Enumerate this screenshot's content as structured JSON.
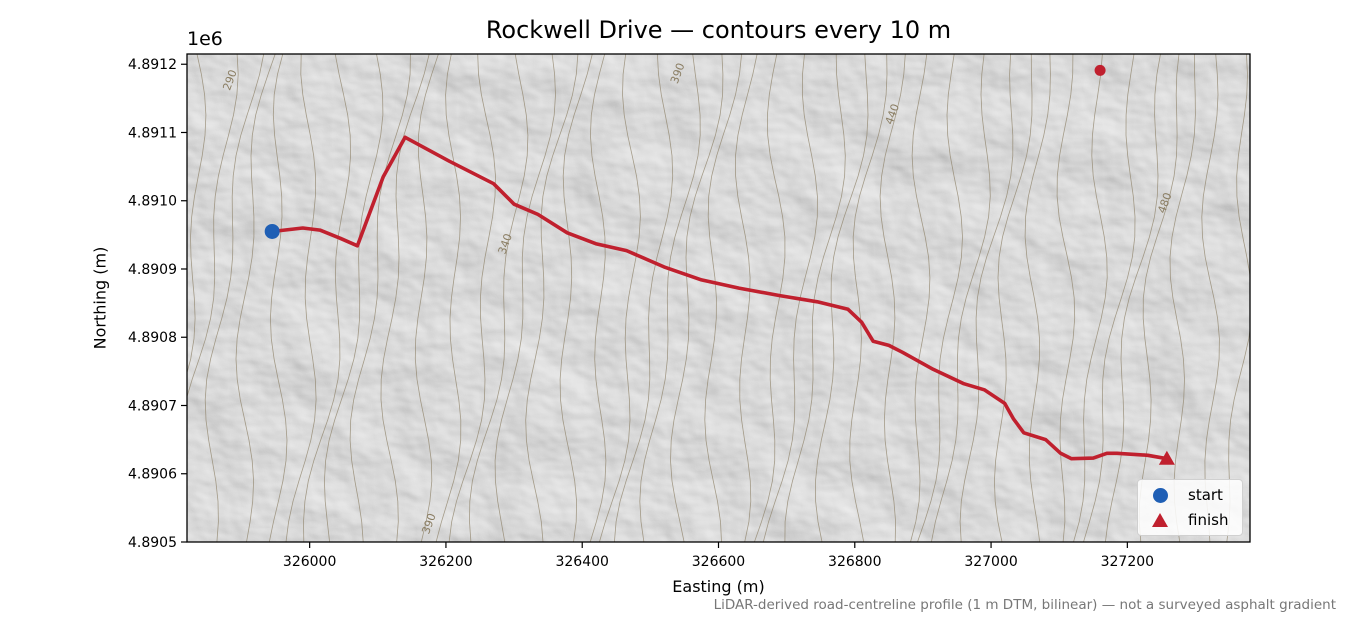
{
  "colors": {
    "route": "#c0202e",
    "start": "#1f5fb5",
    "finish": "#c0202e",
    "poi": "#c0202e",
    "contour": "#8a7d62",
    "hillshade": "#b9b9b9"
  },
  "chart_data": {
    "type": "line",
    "title": "Rockwell Drive — contours every 10 m",
    "xlabel": "Easting (m)",
    "ylabel": "Northing (m)",
    "y_offset_label": "1e6",
    "xlim": [
      325820,
      327380
    ],
    "ylim": [
      4890500,
      4891215
    ],
    "x_ticks": [
      326000,
      326200,
      326400,
      326600,
      326800,
      327000,
      327200
    ],
    "x_tick_labels": [
      "326000",
      "326200",
      "326400",
      "326600",
      "326800",
      "327000",
      "327200"
    ],
    "y_ticks": [
      4890500,
      4890600,
      4890700,
      4890800,
      4890900,
      4891000,
      4891100,
      4891200
    ],
    "y_tick_labels": [
      "4.8905",
      "4.8906",
      "4.8907",
      "4.8908",
      "4.8909",
      "4.8910",
      "4.8911",
      "4.8912"
    ],
    "series": [
      {
        "type": "route",
        "x": [
          325945,
          325990,
          326015,
          326045,
          326070,
          326108,
          326140,
          326205,
          326270,
          326300,
          326335,
          326378,
          326420,
          326465,
          326520,
          326575,
          326630,
          326690,
          326745,
          326790,
          326810,
          326827,
          326850,
          326870,
          326915,
          326960,
          326990,
          327020,
          327033,
          327048,
          327080,
          327102,
          327118,
          327150,
          327170,
          327185,
          327230,
          327258
        ],
        "y": [
          4890955,
          4890960,
          4890957,
          4890945,
          4890934,
          4891035,
          4891093,
          4891058,
          4891025,
          4890995,
          4890980,
          4890953,
          4890937,
          4890927,
          4890903,
          4890884,
          4890872,
          4890861,
          4890852,
          4890841,
          4890822,
          4890794,
          4890788,
          4890778,
          4890753,
          4890732,
          4890723,
          4890703,
          4890680,
          4890660,
          4890650,
          4890630,
          4890622,
          4890623,
          4890630,
          4890630,
          4890627,
          4890622
        ]
      },
      {
        "type": "marker",
        "name": "start",
        "marker": "circle",
        "x": [
          325945
        ],
        "y": [
          4890955
        ]
      },
      {
        "type": "marker",
        "name": "finish",
        "marker": "triangle",
        "x": [
          327258
        ],
        "y": [
          4890622
        ]
      },
      {
        "type": "marker",
        "marker": "circle",
        "x": [
          327160
        ],
        "y": [
          4891191
        ]
      }
    ],
    "contour_labels": [
      {
        "text": "290",
        "x": 325888,
        "y": 4891175
      },
      {
        "text": "390",
        "x": 326545,
        "y": 4891185
      },
      {
        "text": "440",
        "x": 326860,
        "y": 4891125
      },
      {
        "text": "340",
        "x": 326292,
        "y": 4890935
      },
      {
        "text": "480",
        "x": 327260,
        "y": 4890995
      },
      {
        "text": "390",
        "x": 326180,
        "y": 4890525
      }
    ],
    "legend": {
      "placement": "lower-right",
      "entries": [
        "start",
        "finish"
      ]
    },
    "grid": false
  },
  "footnote": "LiDAR-derived road-centreline profile (1 m DTM, bilinear) — not a surveyed asphalt gradient"
}
